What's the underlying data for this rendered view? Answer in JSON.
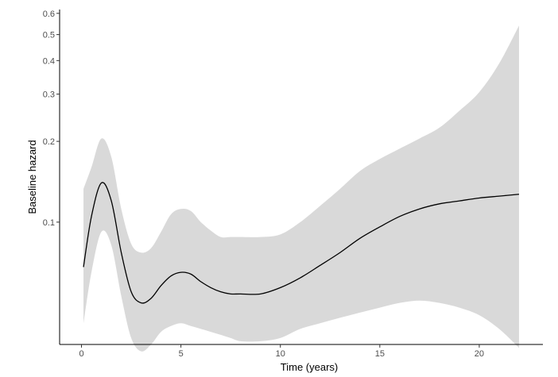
{
  "chart_data": {
    "type": "line",
    "title": "",
    "xlabel": "Time (years)",
    "ylabel": "Baseline hazard",
    "xlim": [
      -1.1,
      23.2
    ],
    "ylim": [
      0.035,
      0.62
    ],
    "yscale": "log",
    "grid": false,
    "legend": "none",
    "x_ticks": [
      0,
      5,
      10,
      15,
      20
    ],
    "x_tick_labels": [
      "0",
      "5",
      "10",
      "15",
      "20"
    ],
    "y_ticks": [
      0.1,
      0.2,
      0.3,
      0.4,
      0.5,
      0.6
    ],
    "y_tick_labels": [
      "0.1",
      "0.2",
      "0.3",
      "0.4",
      "0.5",
      "0.6"
    ],
    "colors": {
      "line": "#000000",
      "band": "#d9d9d9",
      "axis": "#000000"
    },
    "series": [
      {
        "x": [
          0.1,
          0.5,
          1.0,
          1.5,
          2.0,
          2.5,
          3.0,
          3.5,
          4.0,
          4.5,
          5.0,
          5.5,
          6.0,
          6.5,
          7.0,
          7.5,
          8.0,
          9.0,
          10.0,
          11.0,
          12.0,
          13.0,
          14.0,
          15.0,
          16.0,
          17.0,
          18.0,
          19.0,
          20.0,
          21.0,
          22.0
        ],
        "y": [
          0.068,
          0.105,
          0.14,
          0.12,
          0.077,
          0.055,
          0.05,
          0.052,
          0.058,
          0.063,
          0.065,
          0.064,
          0.06,
          0.057,
          0.055,
          0.054,
          0.054,
          0.054,
          0.057,
          0.062,
          0.069,
          0.077,
          0.087,
          0.096,
          0.105,
          0.112,
          0.117,
          0.12,
          0.123,
          0.125,
          0.127
        ],
        "lower": [
          0.042,
          0.065,
          0.092,
          0.082,
          0.053,
          0.037,
          0.033,
          0.035,
          0.039,
          0.041,
          0.042,
          0.041,
          0.04,
          0.039,
          0.038,
          0.037,
          0.036,
          0.036,
          0.037,
          0.04,
          0.042,
          0.044,
          0.046,
          0.048,
          0.05,
          0.051,
          0.05,
          0.048,
          0.045,
          0.04,
          0.034
        ],
        "upper": [
          0.133,
          0.16,
          0.205,
          0.175,
          0.112,
          0.083,
          0.077,
          0.08,
          0.092,
          0.107,
          0.112,
          0.11,
          0.1,
          0.093,
          0.088,
          0.088,
          0.088,
          0.088,
          0.09,
          0.1,
          0.115,
          0.133,
          0.155,
          0.172,
          0.188,
          0.205,
          0.225,
          0.26,
          0.305,
          0.39,
          0.54
        ]
      }
    ]
  }
}
